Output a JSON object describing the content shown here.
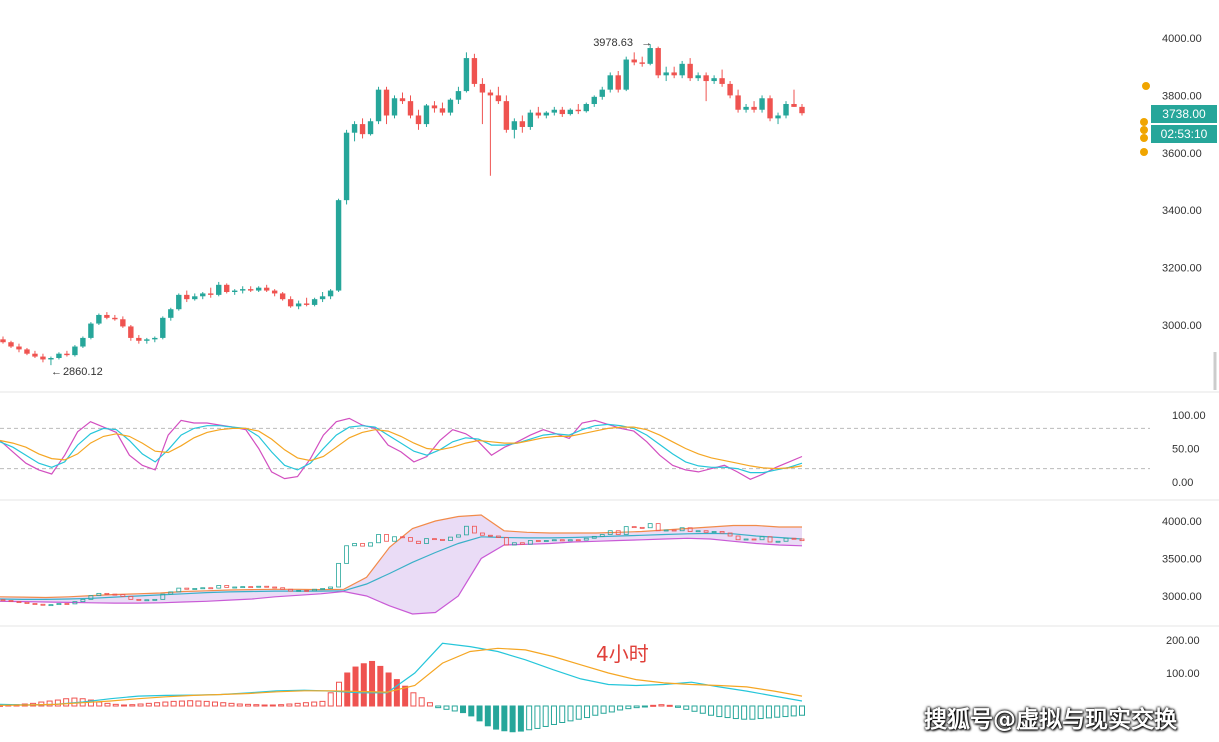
{
  "chart_data": [
    {
      "type": "candlestick",
      "title": "",
      "y_ticks": [
        "4000.00",
        "3800.00",
        "3600.00",
        "3400.00",
        "3200.00",
        "3000.00"
      ],
      "ylim": [
        2820,
        4000
      ],
      "annotations": {
        "high": "3978.63",
        "low": "2860.12"
      },
      "last_price": "3738.00",
      "countdown": "02:53:10",
      "colors": {
        "up": "#26a69a",
        "down": "#ef5350"
      },
      "candles": [
        [
          2950,
          2960,
          2935,
          2940
        ],
        [
          2940,
          2945,
          2920,
          2925
        ],
        [
          2925,
          2935,
          2905,
          2915
        ],
        [
          2915,
          2920,
          2895,
          2900
        ],
        [
          2900,
          2910,
          2885,
          2890
        ],
        [
          2890,
          2900,
          2870,
          2880
        ],
        [
          2880,
          2890,
          2860.12,
          2885
        ],
        [
          2885,
          2905,
          2880,
          2900
        ],
        [
          2900,
          2910,
          2890,
          2895
        ],
        [
          2895,
          2930,
          2890,
          2925
        ],
        [
          2925,
          2960,
          2920,
          2955
        ],
        [
          2955,
          3010,
          2950,
          3005
        ],
        [
          3005,
          3040,
          3000,
          3035
        ],
        [
          3035,
          3045,
          3020,
          3025
        ],
        [
          3025,
          3035,
          3015,
          3020
        ],
        [
          3020,
          3030,
          2990,
          2995
        ],
        [
          2995,
          3000,
          2945,
          2955
        ],
        [
          2955,
          2965,
          2935,
          2945
        ],
        [
          2945,
          2955,
          2935,
          2950
        ],
        [
          2950,
          2960,
          2940,
          2955
        ],
        [
          2955,
          3030,
          2950,
          3025
        ],
        [
          3025,
          3060,
          3015,
          3055
        ],
        [
          3055,
          3110,
          3050,
          3105
        ],
        [
          3105,
          3120,
          3080,
          3090
        ],
        [
          3090,
          3110,
          3085,
          3100
        ],
        [
          3100,
          3115,
          3090,
          3110
        ],
        [
          3110,
          3130,
          3095,
          3105
        ],
        [
          3105,
          3150,
          3100,
          3140
        ],
        [
          3140,
          3145,
          3110,
          3115
        ],
        [
          3115,
          3125,
          3105,
          3120
        ],
        [
          3120,
          3135,
          3110,
          3125
        ],
        [
          3125,
          3135,
          3115,
          3120
        ],
        [
          3120,
          3135,
          3115,
          3130
        ],
        [
          3130,
          3140,
          3115,
          3120
        ],
        [
          3120,
          3125,
          3100,
          3110
        ],
        [
          3110,
          3115,
          3085,
          3090
        ],
        [
          3090,
          3100,
          3060,
          3065
        ],
        [
          3065,
          3085,
          3055,
          3075
        ],
        [
          3075,
          3095,
          3065,
          3070
        ],
        [
          3070,
          3095,
          3065,
          3090
        ],
        [
          3090,
          3115,
          3080,
          3100
        ],
        [
          3100,
          3125,
          3090,
          3120
        ],
        [
          3120,
          3440,
          3115,
          3435
        ],
        [
          3435,
          3680,
          3420,
          3670
        ],
        [
          3670,
          3710,
          3640,
          3700
        ],
        [
          3700,
          3720,
          3650,
          3665
        ],
        [
          3665,
          3720,
          3660,
          3710
        ],
        [
          3710,
          3830,
          3700,
          3820
        ],
        [
          3820,
          3830,
          3700,
          3730
        ],
        [
          3730,
          3800,
          3720,
          3790
        ],
        [
          3790,
          3810,
          3770,
          3780
        ],
        [
          3780,
          3800,
          3720,
          3730
        ],
        [
          3730,
          3750,
          3680,
          3700
        ],
        [
          3700,
          3770,
          3690,
          3765
        ],
        [
          3765,
          3780,
          3740,
          3755
        ],
        [
          3755,
          3775,
          3730,
          3740
        ],
        [
          3740,
          3790,
          3730,
          3785
        ],
        [
          3785,
          3830,
          3770,
          3815
        ],
        [
          3815,
          3950,
          3810,
          3930
        ],
        [
          3930,
          3945,
          3830,
          3840
        ],
        [
          3840,
          3860,
          3700,
          3810
        ],
        [
          3810,
          3820,
          3520,
          3800
        ],
        [
          3800,
          3830,
          3770,
          3780
        ],
        [
          3780,
          3800,
          3670,
          3680
        ],
        [
          3680,
          3720,
          3650,
          3710
        ],
        [
          3710,
          3730,
          3670,
          3690
        ],
        [
          3690,
          3750,
          3680,
          3740
        ],
        [
          3740,
          3760,
          3720,
          3730
        ],
        [
          3730,
          3745,
          3720,
          3740
        ],
        [
          3740,
          3760,
          3730,
          3750
        ],
        [
          3750,
          3760,
          3725,
          3735
        ],
        [
          3735,
          3755,
          3730,
          3750
        ],
        [
          3750,
          3770,
          3735,
          3745
        ],
        [
          3745,
          3775,
          3740,
          3770
        ],
        [
          3770,
          3800,
          3760,
          3795
        ],
        [
          3795,
          3830,
          3785,
          3820
        ],
        [
          3820,
          3880,
          3810,
          3870
        ],
        [
          3870,
          3885,
          3810,
          3820
        ],
        [
          3820,
          3935,
          3815,
          3925
        ],
        [
          3925,
          3950,
          3905,
          3915
        ],
        [
          3915,
          3935,
          3900,
          3910
        ],
        [
          3910,
          3978.63,
          3905,
          3965
        ],
        [
          3965,
          3970,
          3860,
          3870
        ],
        [
          3870,
          3900,
          3850,
          3880
        ],
        [
          3880,
          3900,
          3860,
          3870
        ],
        [
          3870,
          3920,
          3860,
          3910
        ],
        [
          3910,
          3930,
          3850,
          3860
        ],
        [
          3860,
          3880,
          3850,
          3870
        ],
        [
          3870,
          3880,
          3780,
          3850
        ],
        [
          3850,
          3870,
          3840,
          3860
        ],
        [
          3860,
          3890,
          3830,
          3840
        ],
        [
          3840,
          3850,
          3790,
          3800
        ],
        [
          3800,
          3820,
          3740,
          3750
        ],
        [
          3750,
          3770,
          3740,
          3760
        ],
        [
          3760,
          3780,
          3740,
          3750
        ],
        [
          3750,
          3800,
          3740,
          3790
        ],
        [
          3790,
          3800,
          3710,
          3720
        ],
        [
          3720,
          3740,
          3700,
          3730
        ],
        [
          3730,
          3780,
          3720,
          3770
        ],
        [
          3770,
          3820,
          3760,
          3760
        ],
        [
          3760,
          3770,
          3730,
          3738
        ]
      ]
    },
    {
      "type": "line",
      "name": "oscillator",
      "y_ticks": [
        "100.00",
        "50.00",
        "0.00"
      ],
      "ylim": [
        -10,
        115
      ],
      "levels": [
        80,
        20
      ],
      "series": [
        {
          "color": "#d24fc0",
          "values": [
            62,
            45,
            28,
            18,
            12,
            40,
            75,
            90,
            82,
            74,
            40,
            25,
            18,
            70,
            92,
            88,
            88,
            85,
            82,
            78,
            50,
            15,
            5,
            8,
            35,
            70,
            90,
            95,
            85,
            80,
            55,
            45,
            30,
            38,
            62,
            78,
            72,
            60,
            40,
            52,
            60,
            70,
            78,
            72,
            65,
            88,
            92,
            86,
            80,
            76,
            60,
            40,
            25,
            18,
            15,
            20,
            25,
            15,
            4,
            12,
            22,
            30,
            38
          ]
        },
        {
          "color": "#26c6da",
          "values": [
            60,
            52,
            40,
            28,
            22,
            30,
            55,
            72,
            80,
            78,
            62,
            42,
            30,
            48,
            70,
            80,
            84,
            84,
            82,
            80,
            68,
            45,
            25,
            18,
            28,
            50,
            70,
            82,
            84,
            82,
            70,
            58,
            46,
            40,
            48,
            60,
            66,
            64,
            55,
            55,
            58,
            64,
            70,
            72,
            70,
            78,
            84,
            86,
            84,
            80,
            70,
            56,
            42,
            30,
            24,
            22,
            22,
            20,
            14,
            14,
            18,
            22,
            28
          ]
        },
        {
          "color": "#f5a623",
          "values": [
            62,
            58,
            52,
            42,
            35,
            33,
            42,
            58,
            68,
            72,
            68,
            58,
            46,
            44,
            54,
            66,
            74,
            78,
            80,
            80,
            76,
            64,
            48,
            36,
            32,
            38,
            52,
            66,
            74,
            78,
            76,
            68,
            58,
            50,
            48,
            52,
            58,
            62,
            60,
            58,
            58,
            62,
            66,
            68,
            68,
            72,
            76,
            80,
            82,
            82,
            78,
            70,
            60,
            50,
            42,
            36,
            32,
            28,
            24,
            21,
            20,
            21,
            24
          ]
        }
      ]
    },
    {
      "type": "line",
      "name": "bollinger",
      "y_ticks": [
        "4000.00",
        "3500.00",
        "3000.00"
      ],
      "ylim": [
        2700,
        4150
      ],
      "series": [
        {
          "color": "#f28b4a",
          "values": [
            2990,
            2985,
            2980,
            2990,
            3005,
            3020,
            3030,
            3040,
            3060,
            3070,
            3080,
            3085,
            3090,
            3090,
            3085,
            3090,
            3250,
            3650,
            3900,
            4000,
            4060,
            4080,
            3870,
            3850,
            3840,
            3840,
            3840,
            3850,
            3860,
            3880,
            3900,
            3920,
            3940,
            3940,
            3920,
            3920
          ]
        },
        {
          "color": "#3ab0c8",
          "values": [
            2960,
            2955,
            2955,
            2960,
            2970,
            2985,
            3000,
            3015,
            3030,
            3045,
            3055,
            3060,
            3065,
            3065,
            3065,
            3070,
            3160,
            3300,
            3450,
            3580,
            3700,
            3790,
            3780,
            3775,
            3775,
            3780,
            3790,
            3800,
            3810,
            3820,
            3830,
            3835,
            3830,
            3800,
            3780,
            3760
          ]
        },
        {
          "color": "#c95bd6",
          "values": [
            2930,
            2925,
            2920,
            2915,
            2910,
            2905,
            2905,
            2910,
            2920,
            2930,
            2945,
            2960,
            2990,
            3010,
            3030,
            3060,
            3000,
            2870,
            2760,
            2780,
            3000,
            3500,
            3680,
            3690,
            3700,
            3720,
            3730,
            3740,
            3750,
            3760,
            3770,
            3760,
            3730,
            3700,
            3680,
            3670
          ]
        }
      ]
    },
    {
      "type": "bar",
      "name": "macd",
      "y_ticks": [
        "200.00",
        "100.00"
      ],
      "ylim": [
        -95,
        210
      ],
      "histogram": [
        2,
        3,
        4,
        6,
        8,
        12,
        15,
        18,
        22,
        24,
        22,
        18,
        12,
        8,
        5,
        3,
        4,
        6,
        8,
        10,
        12,
        14,
        15,
        16,
        15,
        14,
        12,
        10,
        8,
        6,
        5,
        4,
        3,
        3,
        4,
        6,
        8,
        10,
        12,
        14,
        40,
        72,
        100,
        118,
        128,
        135,
        120,
        100,
        80,
        60,
        40,
        25,
        10,
        -5,
        -10,
        -15,
        -20,
        -30,
        -45,
        -60,
        -70,
        -75,
        -78,
        -76,
        -72,
        -68,
        -62,
        -56,
        -50,
        -45,
        -40,
        -35,
        -28,
        -22,
        -18,
        -12,
        -8,
        -5,
        -2,
        2,
        4,
        2,
        -4,
        -10,
        -16,
        -22,
        -28,
        -32,
        -35,
        -38,
        -40,
        -40,
        -38,
        -36,
        -34,
        -32,
        -30,
        -28
      ],
      "series": [
        {
          "color": "#26c6da",
          "values": [
            5,
            3,
            5,
            12,
            22,
            30,
            32,
            33,
            35,
            40,
            46,
            48,
            45,
            40,
            40,
            100,
            190,
            180,
            165,
            140,
            110,
            82,
            65,
            62,
            65,
            72,
            58,
            45,
            30,
            15
          ]
        },
        {
          "color": "#f5a623",
          "values": [
            2,
            3,
            5,
            10,
            15,
            22,
            28,
            32,
            35,
            38,
            43,
            46,
            46,
            44,
            42,
            62,
            130,
            165,
            175,
            170,
            150,
            125,
            100,
            80,
            70,
            65,
            62,
            58,
            45,
            30
          ]
        }
      ]
    }
  ],
  "overlay": {
    "period_label": "4小时",
    "watermark": "搜狐号@虚拟与现实交换"
  }
}
